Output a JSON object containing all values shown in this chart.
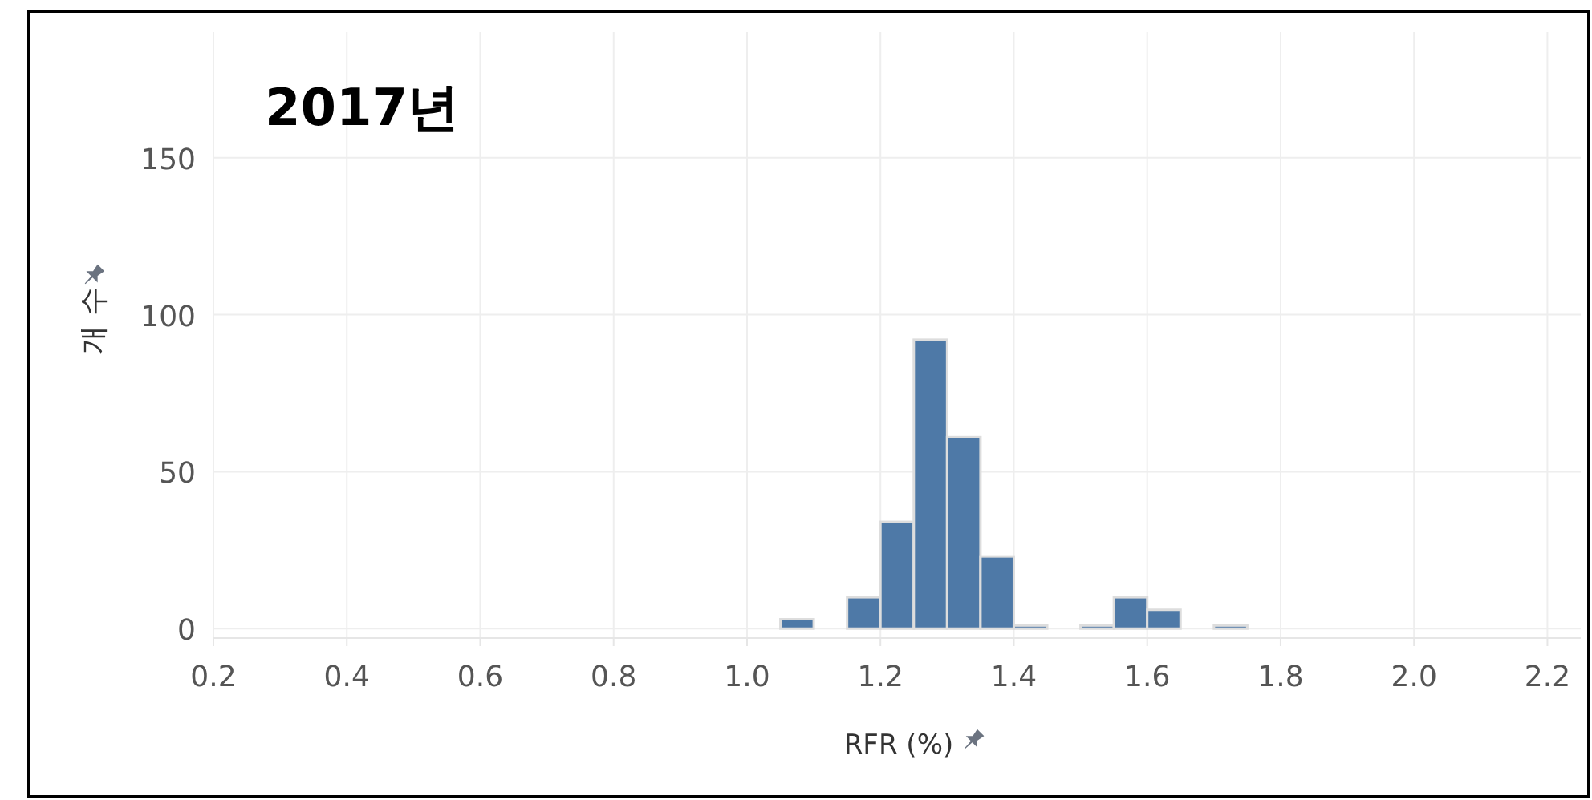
{
  "chart_data": {
    "type": "histogram",
    "title": "2017년",
    "xlabel": "RFR (%)",
    "ylabel": "개 수",
    "bins": [
      1.05,
      1.1,
      1.15,
      1.2,
      1.25,
      1.3,
      1.35,
      1.4,
      1.45,
      1.5,
      1.55,
      1.6,
      1.65,
      1.7,
      1.75
    ],
    "values": [
      3,
      0,
      10,
      34,
      92,
      61,
      23,
      1,
      0,
      1,
      10,
      6,
      0,
      1
    ],
    "color": "#4e79a7",
    "grid": true,
    "xlim": [
      0.2,
      2.25
    ],
    "ylim": [
      -3,
      190
    ],
    "xticks": [
      0.2,
      0.4,
      0.6,
      0.8,
      {
        "value": 1,
        "label": "1.0"
      },
      1.2,
      1.4,
      1.6,
      1.8,
      {
        "value": 2,
        "label": "2.0"
      },
      2.2
    ],
    "yticks": [
      0,
      50,
      100,
      150
    ]
  }
}
